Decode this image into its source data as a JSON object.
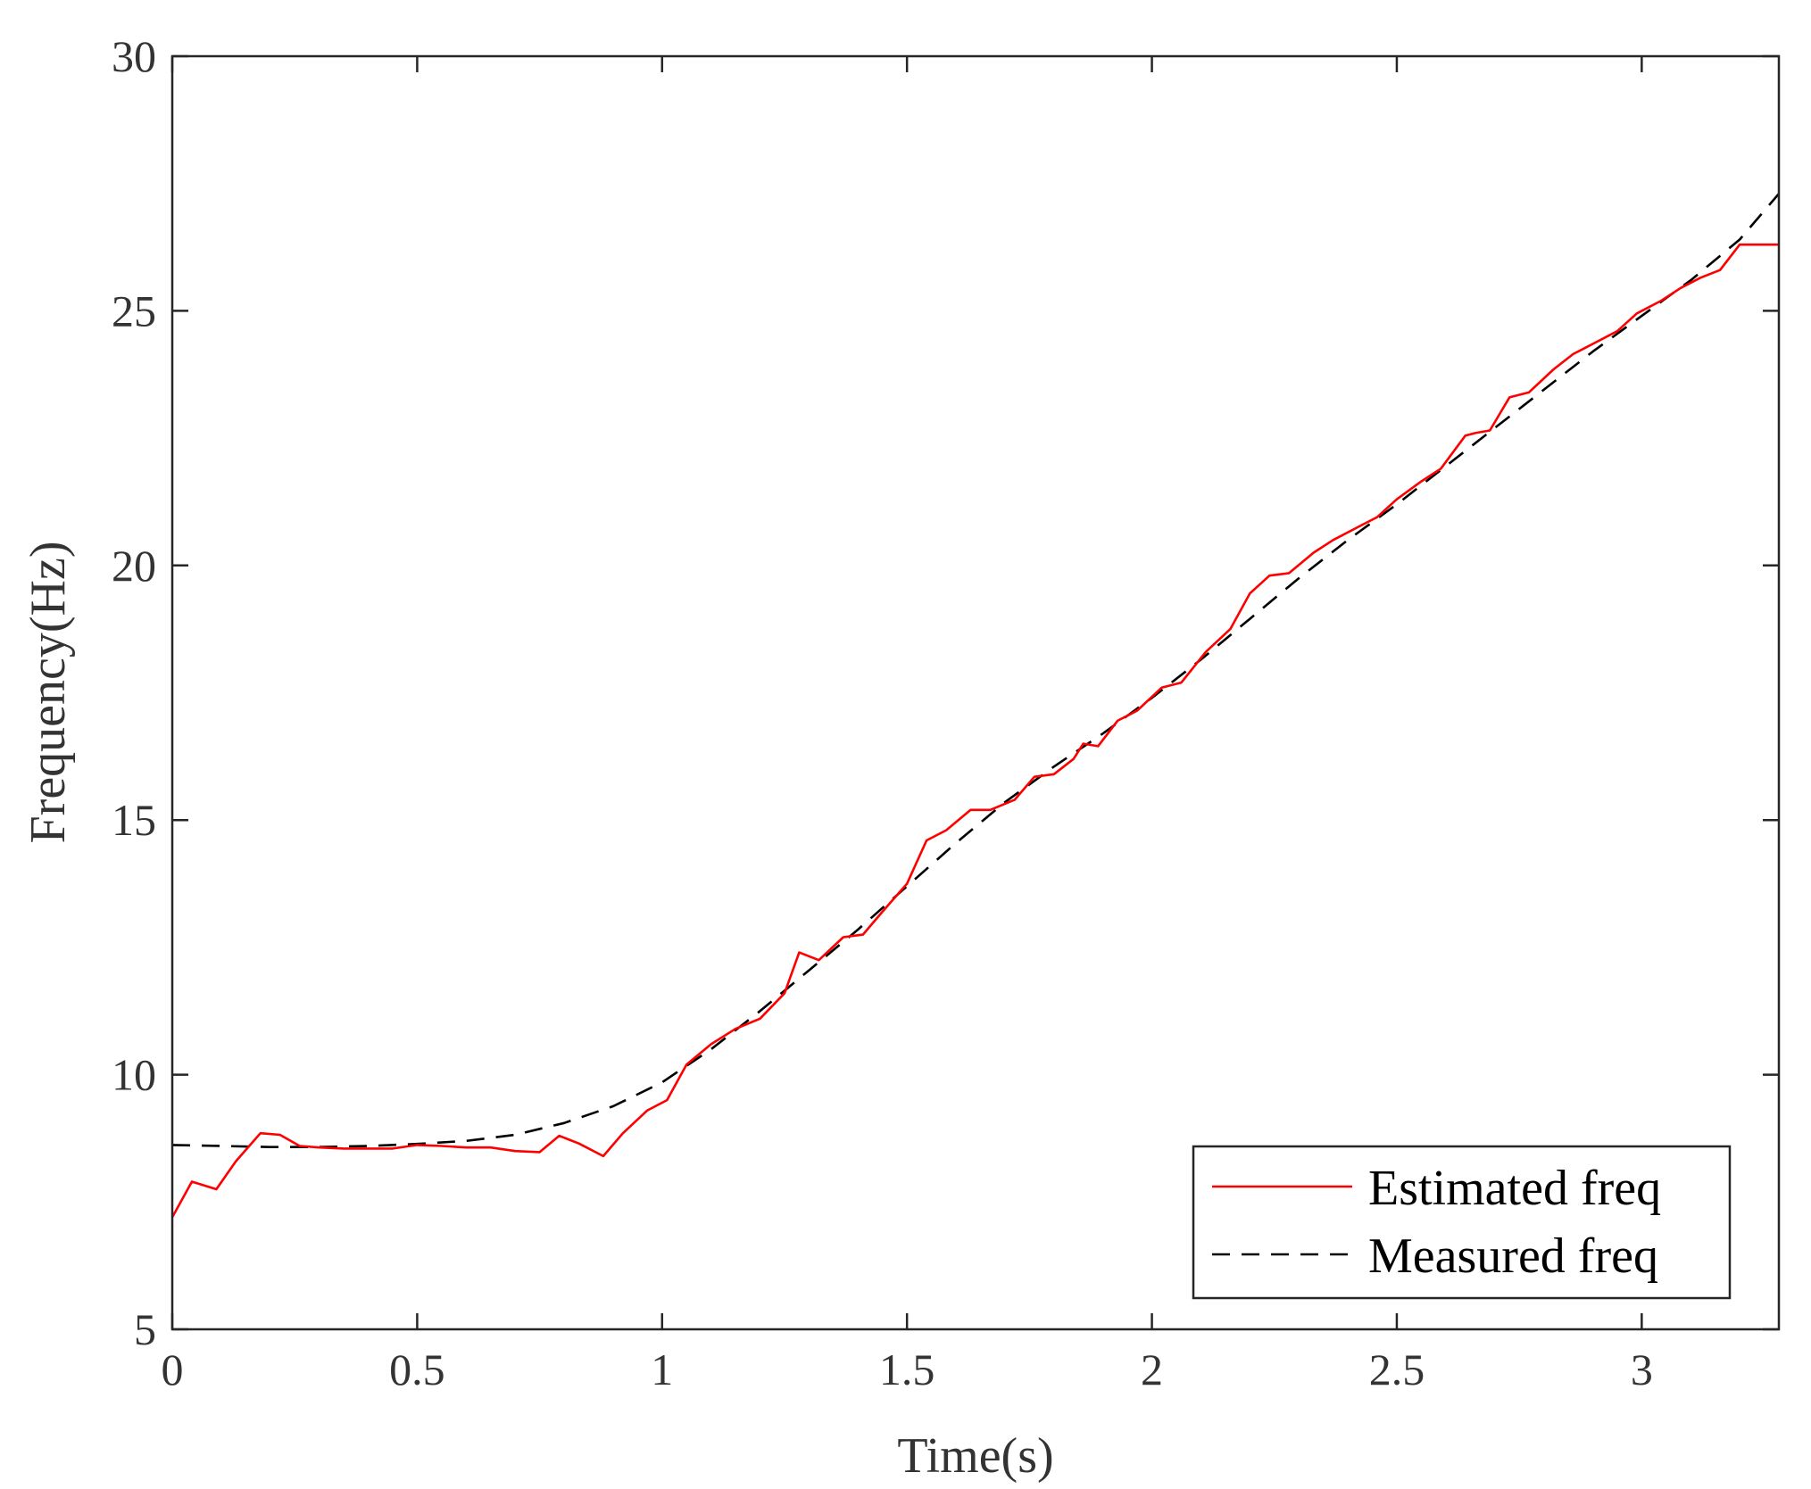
{
  "chart_data": {
    "type": "line",
    "title": "",
    "xlabel": "Time(s)",
    "ylabel": "Frequency(Hz)",
    "xlim": [
      0,
      3.28
    ],
    "ylim": [
      5,
      30
    ],
    "xticks": [
      0,
      0.5,
      1,
      1.5,
      2,
      2.5,
      3
    ],
    "xtick_labels": [
      "0",
      "0.5",
      "1",
      "1.5",
      "2",
      "2.5",
      "3"
    ],
    "yticks": [
      5,
      10,
      15,
      20,
      25,
      30
    ],
    "ytick_labels": [
      "5",
      "10",
      "15",
      "20",
      "25",
      "30"
    ],
    "grid": false,
    "legend_position": "bottom-right",
    "series": [
      {
        "name": "Estimated freq",
        "color": "#ff0000",
        "style": "solid",
        "x": [
          0,
          0.04,
          0.09,
          0.13,
          0.18,
          0.22,
          0.26,
          0.3,
          0.35,
          0.4,
          0.45,
          0.5,
          0.55,
          0.6,
          0.65,
          0.7,
          0.75,
          0.79,
          0.83,
          0.88,
          0.92,
          0.97,
          1.01,
          1.05,
          1.1,
          1.15,
          1.2,
          1.25,
          1.28,
          1.32,
          1.37,
          1.41,
          1.45,
          1.5,
          1.54,
          1.58,
          1.63,
          1.67,
          1.72,
          1.76,
          1.8,
          1.84,
          1.86,
          1.89,
          1.93,
          1.97,
          2.02,
          2.06,
          2.11,
          2.16,
          2.2,
          2.24,
          2.28,
          2.33,
          2.37,
          2.42,
          2.46,
          2.5,
          2.55,
          2.59,
          2.64,
          2.66,
          2.69,
          2.73,
          2.77,
          2.82,
          2.86,
          2.9,
          2.95,
          2.99,
          3.04,
          3.08,
          3.12,
          3.16,
          3.2,
          3.24,
          3.28
        ],
        "y": [
          7.2,
          7.9,
          7.75,
          8.3,
          8.85,
          8.82,
          8.6,
          8.57,
          8.55,
          8.55,
          8.55,
          8.62,
          8.6,
          8.57,
          8.57,
          8.5,
          8.48,
          8.8,
          8.65,
          8.4,
          8.85,
          9.3,
          9.5,
          10.2,
          10.6,
          10.9,
          11.1,
          11.6,
          12.4,
          12.25,
          12.7,
          12.75,
          13.2,
          13.75,
          14.6,
          14.8,
          15.2,
          15.2,
          15.4,
          15.85,
          15.9,
          16.2,
          16.5,
          16.45,
          16.95,
          17.15,
          17.6,
          17.7,
          18.3,
          18.75,
          19.45,
          19.8,
          19.85,
          20.25,
          20.5,
          20.75,
          20.95,
          21.3,
          21.65,
          21.9,
          22.55,
          22.6,
          22.65,
          23.3,
          23.4,
          23.85,
          24.15,
          24.35,
          24.6,
          24.95,
          25.2,
          25.45,
          25.65,
          25.8,
          26.3,
          26.3,
          26.3
        ]
      },
      {
        "name": "Measured freq",
        "color": "#000000",
        "style": "dashed",
        "x": [
          0,
          0.1,
          0.2,
          0.3,
          0.4,
          0.5,
          0.6,
          0.7,
          0.8,
          0.9,
          1.0,
          1.1,
          1.2,
          1.3,
          1.4,
          1.5,
          1.6,
          1.7,
          1.8,
          1.9,
          2.0,
          2.1,
          2.2,
          2.3,
          2.4,
          2.5,
          2.6,
          2.7,
          2.8,
          2.9,
          3.0,
          3.1,
          3.2,
          3.28
        ],
        "y": [
          8.62,
          8.6,
          8.58,
          8.58,
          8.6,
          8.64,
          8.7,
          8.82,
          9.05,
          9.38,
          9.85,
          10.5,
          11.25,
          12.05,
          12.85,
          13.7,
          14.55,
          15.35,
          16.05,
          16.7,
          17.4,
          18.15,
          18.95,
          19.75,
          20.5,
          21.2,
          21.95,
          22.7,
          23.45,
          24.2,
          24.9,
          25.6,
          26.4,
          27.3
        ]
      }
    ]
  }
}
